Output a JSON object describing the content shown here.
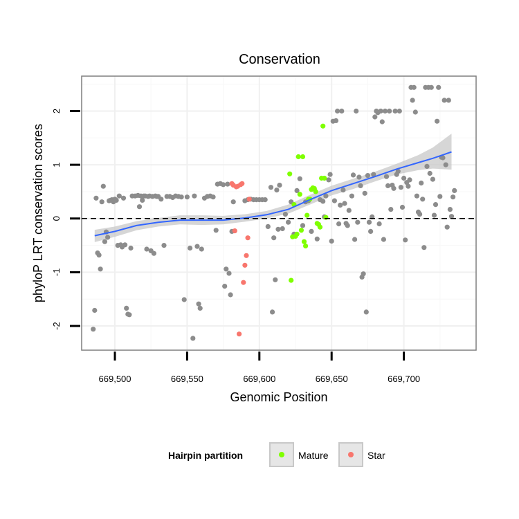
{
  "chart_data": {
    "type": "scatter",
    "title": "Conservation",
    "xlabel": "Genomic Position",
    "ylabel": "phyloP LRT conservation scores",
    "xlim": [
      669477,
      669750
    ],
    "ylim": [
      -2.45,
      2.65
    ],
    "x_ticks": [
      669500,
      669550,
      669600,
      669650,
      669700
    ],
    "x_tick_labels": [
      "669,500",
      "669,550",
      "669,600",
      "669,650",
      "669,700"
    ],
    "y_ticks": [
      -2,
      -1,
      0,
      1,
      2
    ],
    "y_tick_labels": [
      "-2",
      "-1",
      "0",
      "1",
      "2"
    ],
    "grid": true,
    "reference_line": {
      "y": 0,
      "style": "dashed"
    },
    "legend": {
      "title": "Hairpin partition",
      "position": "bottom",
      "entries": [
        {
          "label": "Mature",
          "color": "#7fff00"
        },
        {
          "label": "Star",
          "color": "#f8766d"
        }
      ]
    },
    "colors": {
      "other": "#8c8c8c",
      "smooth": "#3366ff",
      "ribbon": "#c8c8c8"
    },
    "series": [
      {
        "group": "other",
        "points": [
          [
            669485,
            -2.06
          ],
          [
            669486,
            -1.71
          ],
          [
            669487,
            0.38
          ],
          [
            669488,
            -0.64
          ],
          [
            669489,
            -0.68
          ],
          [
            669490,
            -0.94
          ],
          [
            669491,
            0.31
          ],
          [
            669492,
            0.6
          ],
          [
            669493,
            -0.43
          ],
          [
            669494,
            -0.25
          ],
          [
            669495,
            -0.35
          ],
          [
            669496,
            0.33
          ],
          [
            669497,
            0.34
          ],
          [
            669498,
            0.35
          ],
          [
            669499,
            0.31
          ],
          [
            669500,
            0.36
          ],
          [
            669501,
            0.34
          ],
          [
            669502,
            -0.5
          ],
          [
            669503,
            0.42
          ],
          [
            669504,
            -0.49
          ],
          [
            669505,
            -0.53
          ],
          [
            669506,
            0.38
          ],
          [
            669507,
            -0.49
          ],
          [
            669508,
            -1.67
          ],
          [
            669509,
            -1.78
          ],
          [
            669510,
            -1.79
          ],
          [
            669511,
            -0.55
          ],
          [
            669512,
            0.42
          ],
          [
            669514,
            0.42
          ],
          [
            669516,
            0.43
          ],
          [
            669517,
            0.22
          ],
          [
            669518,
            0.42
          ],
          [
            669519,
            0.34
          ],
          [
            669520,
            0.42
          ],
          [
            669521,
            0.42
          ],
          [
            669522,
            -0.57
          ],
          [
            669523,
            0.41
          ],
          [
            669524,
            0.42
          ],
          [
            669525,
            -0.6
          ],
          [
            669526,
            0.41
          ],
          [
            669527,
            -0.65
          ],
          [
            669528,
            0.42
          ],
          [
            669529,
            0.41
          ],
          [
            669530,
            0.41
          ],
          [
            669532,
            0.36
          ],
          [
            669534,
            -0.5
          ],
          [
            669536,
            0.41
          ],
          [
            669538,
            0.41
          ],
          [
            669540,
            0.39
          ],
          [
            669542,
            0.42
          ],
          [
            669544,
            0.41
          ],
          [
            669546,
            0.4
          ],
          [
            669548,
            -1.51
          ],
          [
            669550,
            0.4
          ],
          [
            669552,
            -0.55
          ],
          [
            669554,
            -2.23
          ],
          [
            669555,
            0.42
          ],
          [
            669557,
            -0.52
          ],
          [
            669558,
            -1.59
          ],
          [
            669559,
            -1.67
          ],
          [
            669560,
            -0.57
          ],
          [
            669562,
            0.38
          ],
          [
            669564,
            0.41
          ],
          [
            669566,
            0.42
          ],
          [
            669568,
            0.4
          ],
          [
            669570,
            -0.22
          ],
          [
            669571,
            0.64
          ],
          [
            669573,
            0.65
          ],
          [
            669575,
            0.63
          ],
          [
            669576,
            -1.26
          ],
          [
            669577,
            -0.94
          ],
          [
            669578,
            0.64
          ],
          [
            669579,
            -1.02
          ],
          [
            669580,
            -1.42
          ],
          [
            669581,
            -0.24
          ],
          [
            669582,
            0.31
          ],
          [
            669590,
            0.33
          ],
          [
            669592,
            0.35
          ],
          [
            669594,
            0.36
          ],
          [
            669596,
            0.35
          ],
          [
            669598,
            0.35
          ],
          [
            669600,
            0.35
          ],
          [
            669602,
            0.35
          ],
          [
            669604,
            0.35
          ],
          [
            669606,
            -0.15
          ],
          [
            669608,
            0.58
          ],
          [
            669609,
            -1.74
          ],
          [
            669610,
            -0.36
          ],
          [
            669611,
            -1.14
          ],
          [
            669612,
            0.53
          ],
          [
            669613,
            -0.2
          ],
          [
            669614,
            0.62
          ],
          [
            669616,
            -0.19
          ],
          [
            669618,
            0.08
          ],
          [
            669620,
            -0.07
          ],
          [
            669622,
            0.31
          ],
          [
            669624,
            -0.29
          ],
          [
            669626,
            0.52
          ],
          [
            669628,
            0.74
          ],
          [
            669630,
            -0.13
          ],
          [
            669632,
            0.31
          ],
          [
            669634,
            0.33
          ],
          [
            669636,
            -0.24
          ],
          [
            669638,
            0.55
          ],
          [
            669640,
            -0.38
          ],
          [
            669642,
            0.35
          ],
          [
            669644,
            0.32
          ],
          [
            669645,
            0.03
          ],
          [
            669646,
            0.42
          ],
          [
            669648,
            0.72
          ],
          [
            669649,
            0.82
          ],
          [
            669650,
            -0.42
          ],
          [
            669651,
            1.81
          ],
          [
            669652,
            0.33
          ],
          [
            669653,
            1.82
          ],
          [
            669654,
            2
          ],
          [
            669655,
            -0.1
          ],
          [
            669656,
            0.25
          ],
          [
            669657,
            2
          ],
          [
            669658,
            0.53
          ],
          [
            669659,
            0.28
          ],
          [
            669660,
            -0.09
          ],
          [
            669661,
            -0.13
          ],
          [
            669662,
            0.15
          ],
          [
            669664,
            0.42
          ],
          [
            669665,
            0.81
          ],
          [
            669666,
            -0.39
          ],
          [
            669667,
            2
          ],
          [
            669668,
            -0.07
          ],
          [
            669669,
            0.77
          ],
          [
            669670,
            0.61
          ],
          [
            669671,
            -1.09
          ],
          [
            669672,
            -1.03
          ],
          [
            669673,
            0.47
          ],
          [
            669674,
            -1.74
          ],
          [
            669675,
            0.8
          ],
          [
            669676,
            -0.07
          ],
          [
            669677,
            -0.24
          ],
          [
            669678,
            0.03
          ],
          [
            669679,
            0.82
          ],
          [
            669680,
            1.89
          ],
          [
            669681,
            2
          ],
          [
            669682,
            1.97
          ],
          [
            669683,
            -0.1
          ],
          [
            669684,
            2
          ],
          [
            669685,
            1.8
          ],
          [
            669686,
            -0.39
          ],
          [
            669687,
            2
          ],
          [
            669688,
            0.78
          ],
          [
            669689,
            0.61
          ],
          [
            669690,
            2
          ],
          [
            669691,
            0.17
          ],
          [
            669692,
            0.62
          ],
          [
            669693,
            0.56
          ],
          [
            669694,
            2
          ],
          [
            669695,
            0.82
          ],
          [
            669696,
            0.88
          ],
          [
            669697,
            2
          ],
          [
            669698,
            0.58
          ],
          [
            669699,
            0.21
          ],
          [
            669700,
            0.75
          ],
          [
            669701,
            -0.4
          ],
          [
            669702,
            0.67
          ],
          [
            669703,
            0.6
          ],
          [
            669704,
            0.72
          ],
          [
            669705,
            2.44
          ],
          [
            669706,
            2.2
          ],
          [
            669707,
            2.44
          ],
          [
            669708,
            1.98
          ],
          [
            669709,
            0.42
          ],
          [
            669710,
            0.12
          ],
          [
            669711,
            0.08
          ],
          [
            669712,
            0.66
          ],
          [
            669713,
            0.36
          ],
          [
            669714,
            -0.54
          ],
          [
            669715,
            2.44
          ],
          [
            669716,
            0.97
          ],
          [
            669717,
            2.44
          ],
          [
            669718,
            0.84
          ],
          [
            669719,
            2.44
          ],
          [
            669720,
            0.73
          ],
          [
            669721,
            0.06
          ],
          [
            669722,
            0.26
          ],
          [
            669723,
            1.81
          ],
          [
            669724,
            2.44
          ],
          [
            669725,
            0.41
          ],
          [
            669726,
            1.14
          ],
          [
            669727,
            1.13
          ],
          [
            669728,
            2.2
          ],
          [
            669729,
            1
          ],
          [
            669730,
            -0.16
          ],
          [
            669731,
            2.2
          ],
          [
            669732,
            0.17
          ],
          [
            669733,
            0.04
          ],
          [
            669734,
            0.4
          ],
          [
            669735,
            0.52
          ]
        ]
      },
      {
        "group": "Mature",
        "name": "Mature",
        "points": [
          [
            669621,
            0.83
          ],
          [
            669622,
            -1.15
          ],
          [
            669623,
            -0.34
          ],
          [
            669624,
            0.26
          ],
          [
            669625,
            -0.33
          ],
          [
            669626,
            -0.29
          ],
          [
            669627,
            1.15
          ],
          [
            669628,
            0.45
          ],
          [
            669629,
            -0.22
          ],
          [
            669630,
            1.15
          ],
          [
            669631,
            -0.43
          ],
          [
            669632,
            -0.51
          ],
          [
            669633,
            0.06
          ],
          [
            669634,
            0.36
          ],
          [
            669635,
            0.36
          ],
          [
            669636,
            0.54
          ],
          [
            669637,
            0.57
          ],
          [
            669638,
            0.56
          ],
          [
            669639,
            0.5
          ],
          [
            669640,
            -0.09
          ],
          [
            669641,
            -0.11
          ],
          [
            669642,
            -0.16
          ],
          [
            669643,
            0.75
          ],
          [
            669644,
            1.72
          ],
          [
            669645,
            0.75
          ],
          [
            669646,
            0.02
          ]
        ]
      },
      {
        "group": "Star",
        "name": "Star",
        "points": [
          [
            669581,
            0.65
          ],
          [
            669582,
            0.62
          ],
          [
            669583,
            -0.23
          ],
          [
            669584,
            0.59
          ],
          [
            669585,
            0.6
          ],
          [
            669586,
            -2.15
          ],
          [
            669587,
            0.63
          ],
          [
            669588,
            0.65
          ],
          [
            669589,
            -1.19
          ],
          [
            669590,
            -0.87
          ],
          [
            669591,
            -0.69
          ],
          [
            669592,
            -0.36
          ],
          [
            669593,
            0.36
          ]
        ]
      }
    ],
    "smooth": {
      "x": [
        669486,
        669500,
        669515,
        669530,
        669545,
        669560,
        669575,
        669590,
        669605,
        669620,
        669635,
        669650,
        669665,
        669680,
        669695,
        669710,
        669720,
        669733
      ],
      "y": [
        -0.32,
        -0.24,
        -0.13,
        -0.07,
        -0.03,
        -0.03,
        -0.03,
        0.01,
        0.07,
        0.17,
        0.35,
        0.52,
        0.65,
        0.78,
        0.92,
        1.04,
        1.12,
        1.24
      ],
      "upper": [
        -0.21,
        -0.15,
        -0.05,
        0.01,
        0.06,
        0.06,
        0.05,
        0.08,
        0.14,
        0.26,
        0.44,
        0.61,
        0.74,
        0.87,
        1.02,
        1.18,
        1.32,
        1.58
      ],
      "lower": [
        -0.44,
        -0.34,
        -0.22,
        -0.15,
        -0.11,
        -0.12,
        -0.11,
        -0.06,
        0.0,
        0.09,
        0.26,
        0.43,
        0.55,
        0.69,
        0.82,
        0.9,
        0.93,
        0.91
      ]
    }
  }
}
